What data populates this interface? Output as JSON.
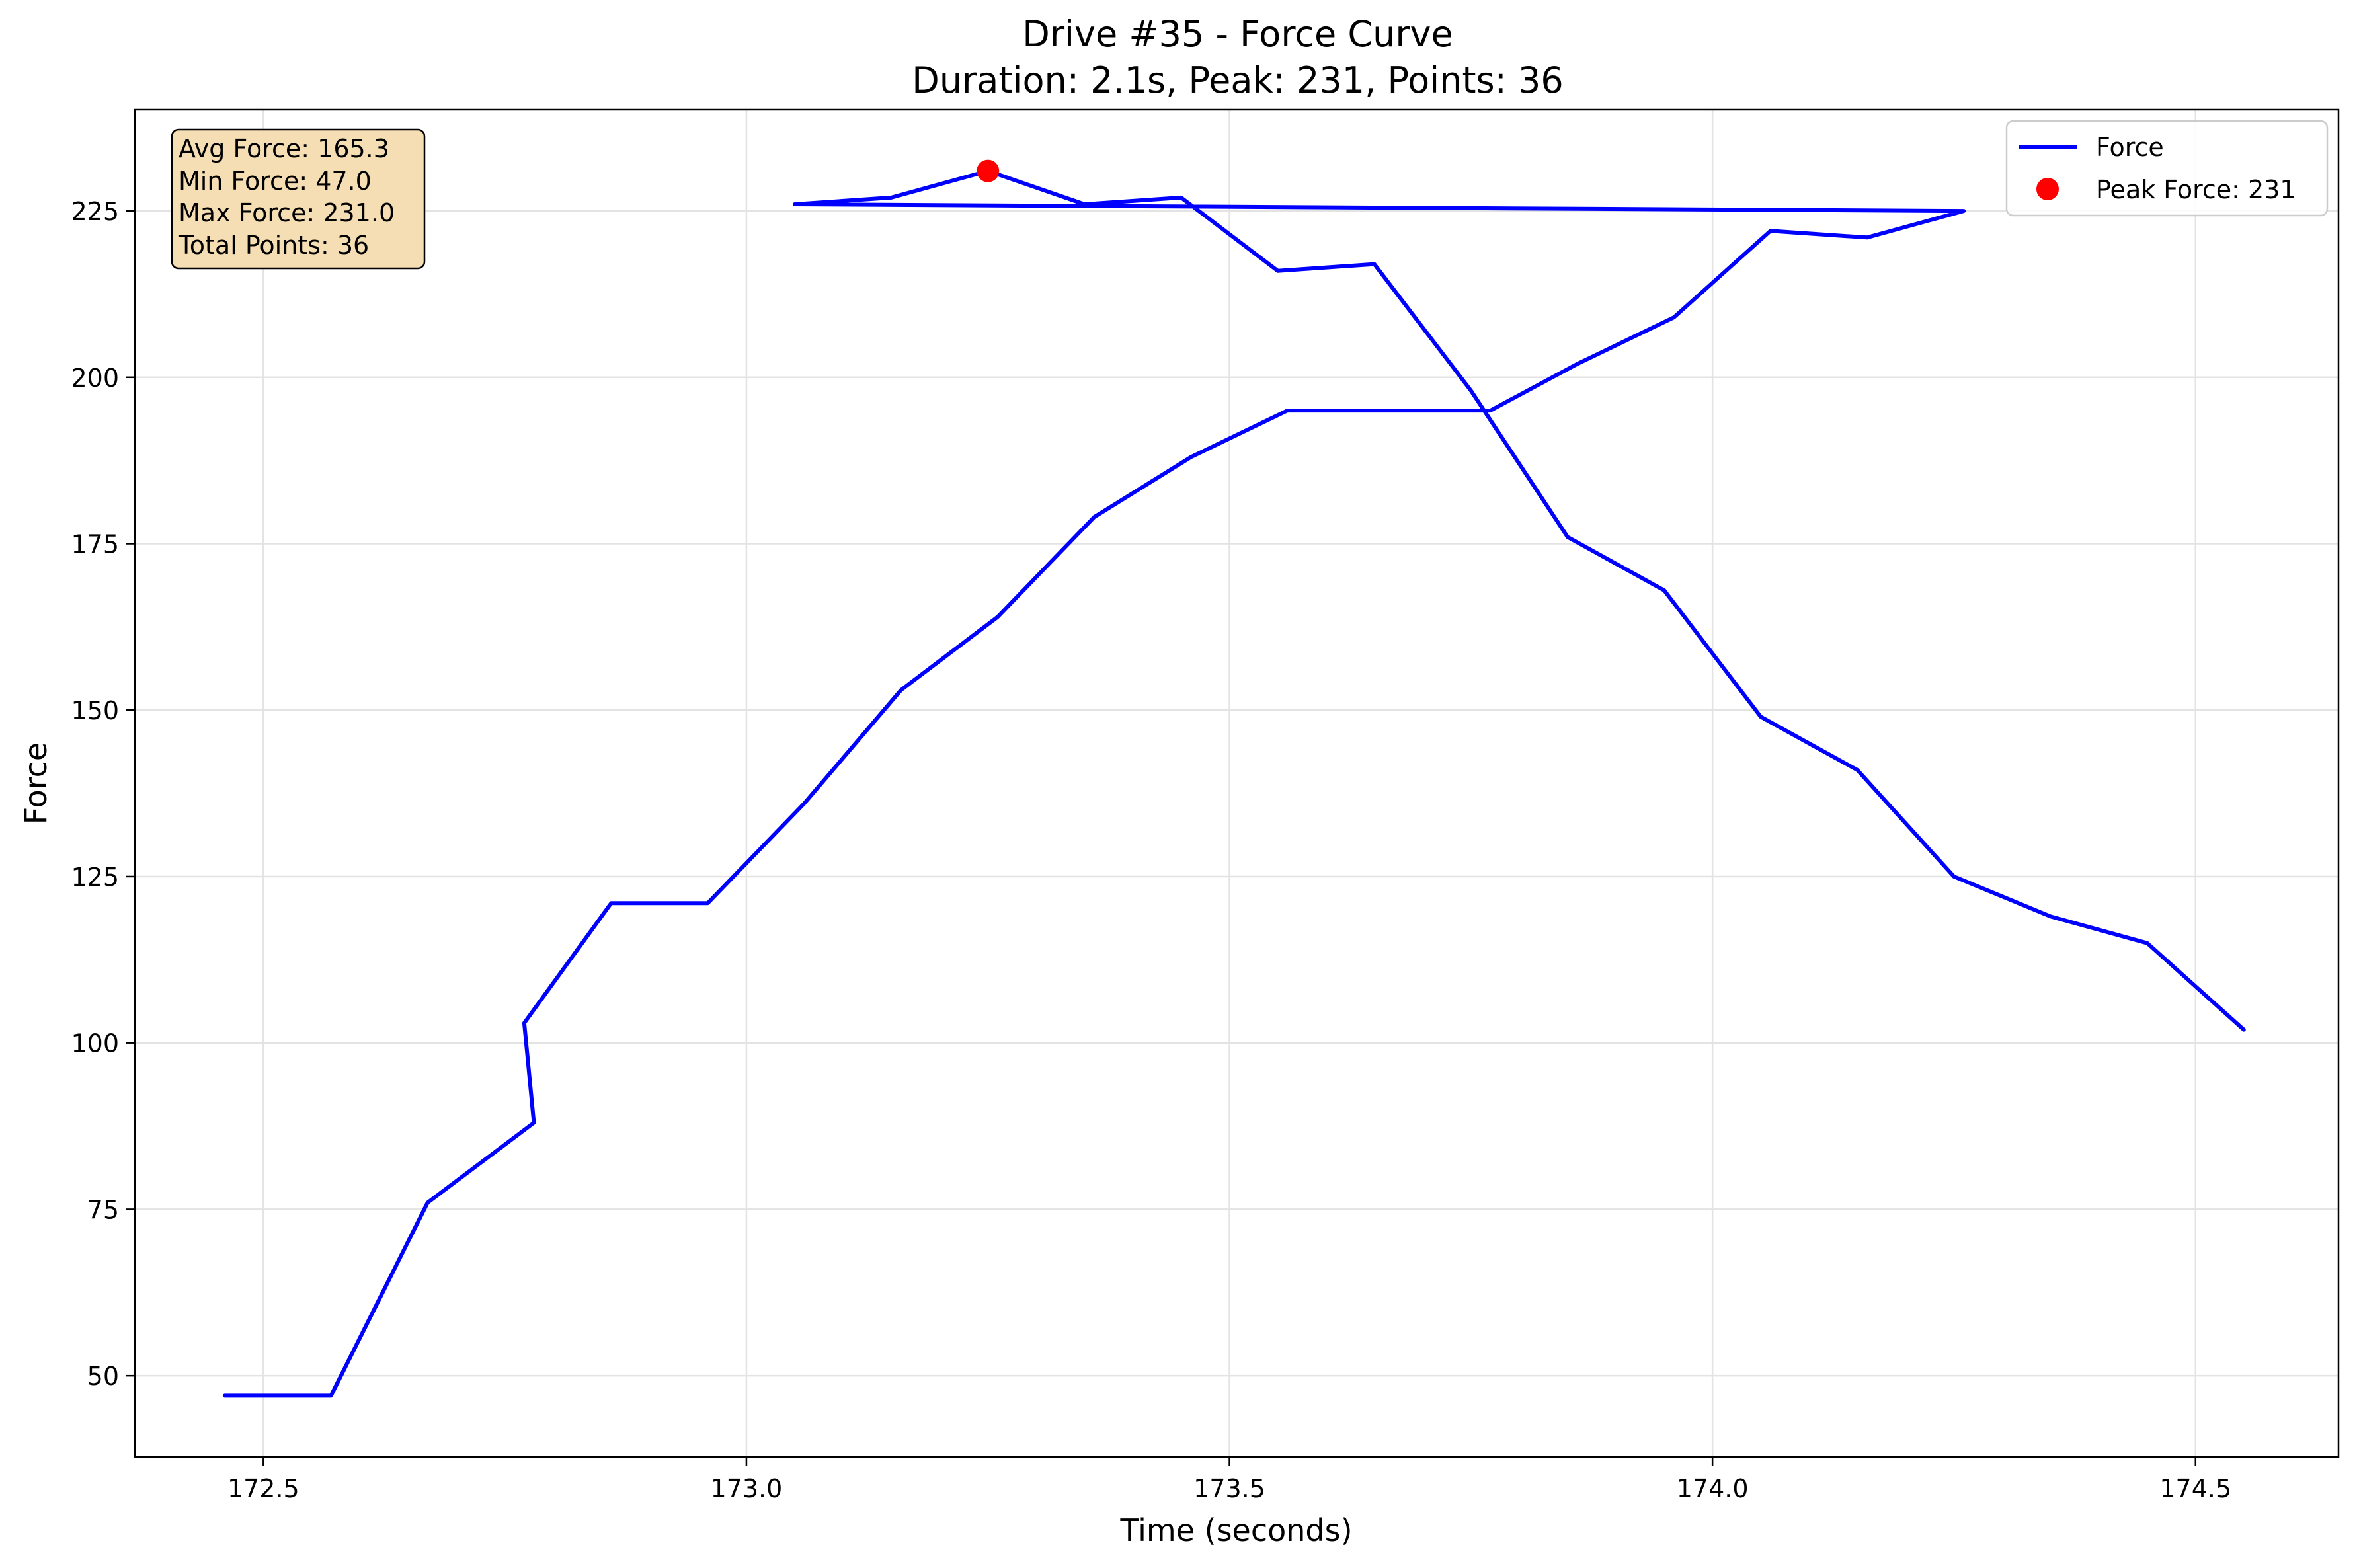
{
  "chart_data": {
    "type": "line",
    "title": "Drive #35 - Force Curve",
    "subtitle": "Duration: 2.1s, Peak: 231, Points: 36",
    "xlabel": "Time (seconds)",
    "ylabel": "Force",
    "xlim": [
      172.367,
      174.648
    ],
    "ylim": [
      37.8,
      240.2
    ],
    "grid": true,
    "legend_position": "top-right",
    "xticks": [
      172.5,
      173.0,
      173.5,
      174.0,
      174.5
    ],
    "xtick_labels": [
      "172.5",
      "173.0",
      "173.5",
      "174.0",
      "174.5"
    ],
    "yticks": [
      50,
      75,
      100,
      125,
      150,
      175,
      200,
      225
    ],
    "ytick_labels": [
      "50",
      "75",
      "100",
      "125",
      "150",
      "175",
      "200",
      "225"
    ],
    "series": [
      {
        "name": "Force",
        "color": "#0000ff",
        "x": [
          172.46,
          172.57,
          172.67,
          172.78,
          172.77,
          172.86,
          172.96,
          173.06,
          173.16,
          173.26,
          173.36,
          173.46,
          173.56,
          173.66,
          173.77,
          173.86,
          173.96,
          174.06,
          174.16,
          174.26,
          173.05,
          173.15,
          173.25,
          173.35,
          173.45,
          173.55,
          173.65,
          173.75,
          173.85,
          173.95,
          174.05,
          174.15,
          174.25,
          174.35,
          174.45,
          174.55
        ],
        "y": [
          47,
          47,
          76,
          88,
          103,
          121,
          121,
          136,
          153,
          164,
          179,
          188,
          195,
          195,
          195,
          202,
          209,
          222,
          221,
          225,
          226,
          227,
          231,
          226,
          227,
          216,
          217,
          198,
          176,
          168,
          149,
          141,
          125,
          119,
          115,
          102
        ]
      }
    ],
    "peak": {
      "label": "Peak Force: 231",
      "x": 173.25,
      "y": 231,
      "color": "#ff0000"
    },
    "stats_box": {
      "lines": [
        "Avg Force: 165.3",
        "Min Force: 47.0",
        "Max Force: 231.0",
        "Total Points: 36"
      ],
      "background": "#f5deb3"
    }
  }
}
